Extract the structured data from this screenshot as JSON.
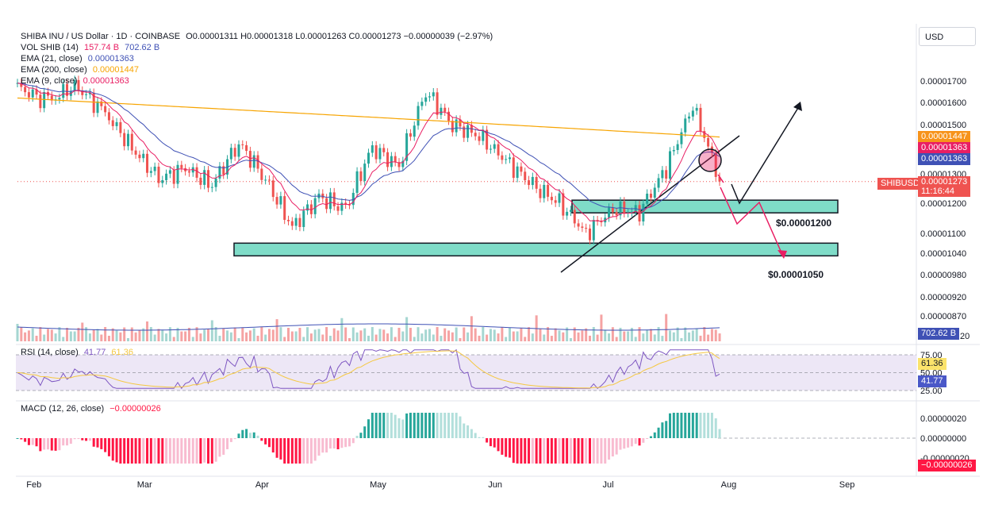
{
  "header": {
    "title": "SHIBA INU / US Dollar · 1D · COINBASE",
    "ohlc": "O0.00001311 H0.00001318 L0.00001263 C0.00001273 −0.00000039 (−2.97%)",
    "currency_button": "USD"
  },
  "legend": [
    {
      "name": "VOL SHIB (14)",
      "values": [
        "157.74 B",
        "702.62 B"
      ],
      "colors": [
        "#e91e63",
        "#3f51b5"
      ]
    },
    {
      "name": "EMA (21, close)",
      "values": [
        "0.00001363"
      ],
      "colors": [
        "#3f51b5"
      ]
    },
    {
      "name": "EMA (200, close)",
      "values": [
        "0.00001447"
      ],
      "colors": [
        "#f7a400"
      ]
    },
    {
      "name": "EMA (9, close)",
      "values": [
        "0.00001363"
      ],
      "colors": [
        "#e91e63"
      ]
    }
  ],
  "price_axis": {
    "ticks": [
      "0.00001700",
      "0.00001600",
      "0.00001500",
      "0.00001300",
      "0.00001200",
      "0.00001100",
      "0.00001040",
      "0.00000980",
      "0.00000920",
      "0.00000870"
    ],
    "tags": [
      {
        "text": "0.00001447",
        "color": "#f7931a"
      },
      {
        "text": "0.00001363",
        "color": "#e91e63"
      },
      {
        "text": "0.00001363",
        "color": "#3f51b5"
      }
    ],
    "symbol_tag": "SHIBUSD",
    "last_price": "0.00001273",
    "countdown": "11:16:44",
    "volume_tag": "702.62 B",
    "volume_partial": "20"
  },
  "annotations": {
    "support_1": "$0.00001200",
    "support_2": "$0.00001050"
  },
  "rsi": {
    "title": "RSI (14, close)",
    "value": "41.77",
    "ma_value": "61.36",
    "ticks": [
      "75.00",
      "50.00",
      "25.00"
    ],
    "tags": [
      {
        "text": "61.36",
        "color": "#fbe36b"
      },
      {
        "text": "41.77",
        "color": "#4a58c8"
      }
    ]
  },
  "macd": {
    "title": "MACD (12, 26, close)",
    "value": "−0.00000026",
    "ticks": [
      "0.00000020",
      "0.00000000",
      "-0.00000020"
    ],
    "tag": "−0.00000026"
  },
  "time_axis": [
    "Feb",
    "Mar",
    "Apr",
    "May",
    "Jun",
    "Jul",
    "Aug",
    "Sep"
  ],
  "colors": {
    "up": "#26a69a",
    "down": "#ef5350",
    "ema9": "#e91e63",
    "ema21": "#3f51b5",
    "ema200": "#f7a400",
    "zone": "#7fdcc8",
    "rsi": "#7e57c2",
    "rsi_ma": "#f5c842",
    "rsi_band": "#ede7f6",
    "macd_up_strong": "#26a69a",
    "macd_up_weak": "#b2dfdb",
    "macd_down_strong": "#ff1744",
    "macd_down_weak": "#f8bbd0"
  },
  "chart_data": {
    "type": "candlestick",
    "interval": "1D",
    "y_unit": "USD",
    "ylim": [
      9.2e-06,
      1.78e-05
    ],
    "points": [
      {
        "date": "2024-01-28",
        "close": 1.67e-05
      },
      {
        "date": "2024-02-05",
        "close": 1.6e-05
      },
      {
        "date": "2024-02-12",
        "close": 1.68e-05
      },
      {
        "date": "2024-02-20",
        "close": 1.55e-05
      },
      {
        "date": "2024-02-27",
        "close": 1.4e-05
      },
      {
        "date": "2024-03-05",
        "close": 1.28e-05
      },
      {
        "date": "2024-03-12",
        "close": 1.32e-05
      },
      {
        "date": "2024-03-19",
        "close": 1.26e-05
      },
      {
        "date": "2024-03-26",
        "close": 1.42e-05
      },
      {
        "date": "2024-04-02",
        "close": 1.28e-05
      },
      {
        "date": "2024-04-09",
        "close": 1.12e-05
      },
      {
        "date": "2024-04-16",
        "close": 1.22e-05
      },
      {
        "date": "2024-04-23",
        "close": 1.18e-05
      },
      {
        "date": "2024-04-30",
        "close": 1.4e-05
      },
      {
        "date": "2024-05-07",
        "close": 1.33e-05
      },
      {
        "date": "2024-05-14",
        "close": 1.65e-05
      },
      {
        "date": "2024-05-21",
        "close": 1.5e-05
      },
      {
        "date": "2024-05-28",
        "close": 1.45e-05
      },
      {
        "date": "2024-06-04",
        "close": 1.35e-05
      },
      {
        "date": "2024-06-11",
        "close": 1.26e-05
      },
      {
        "date": "2024-06-18",
        "close": 1.2e-05
      },
      {
        "date": "2024-06-25",
        "close": 1.1e-05
      },
      {
        "date": "2024-07-02",
        "close": 1.18e-05
      },
      {
        "date": "2024-07-09",
        "close": 1.17e-05
      },
      {
        "date": "2024-07-16",
        "close": 1.32e-05
      },
      {
        "date": "2024-07-23",
        "close": 1.58e-05
      },
      {
        "date": "2024-07-30",
        "close": 1.273e-05
      }
    ],
    "series": [
      {
        "name": "EMA (200, close)",
        "last": 1.447e-05
      },
      {
        "name": "EMA (21, close)",
        "last": 1.363e-05
      },
      {
        "name": "EMA (9, close)",
        "last": 1.363e-05
      }
    ],
    "zones": [
      {
        "label": "$0.00001200",
        "from": 1.17e-05,
        "to": 1.21e-05
      },
      {
        "label": "$0.00001050",
        "from": 1.04e-05,
        "to": 1.07e-05
      }
    ],
    "rsi": {
      "value": 41.77,
      "ma": 61.36,
      "ylim": [
        25,
        75
      ]
    },
    "macd": {
      "value": -2.6e-07
    }
  }
}
